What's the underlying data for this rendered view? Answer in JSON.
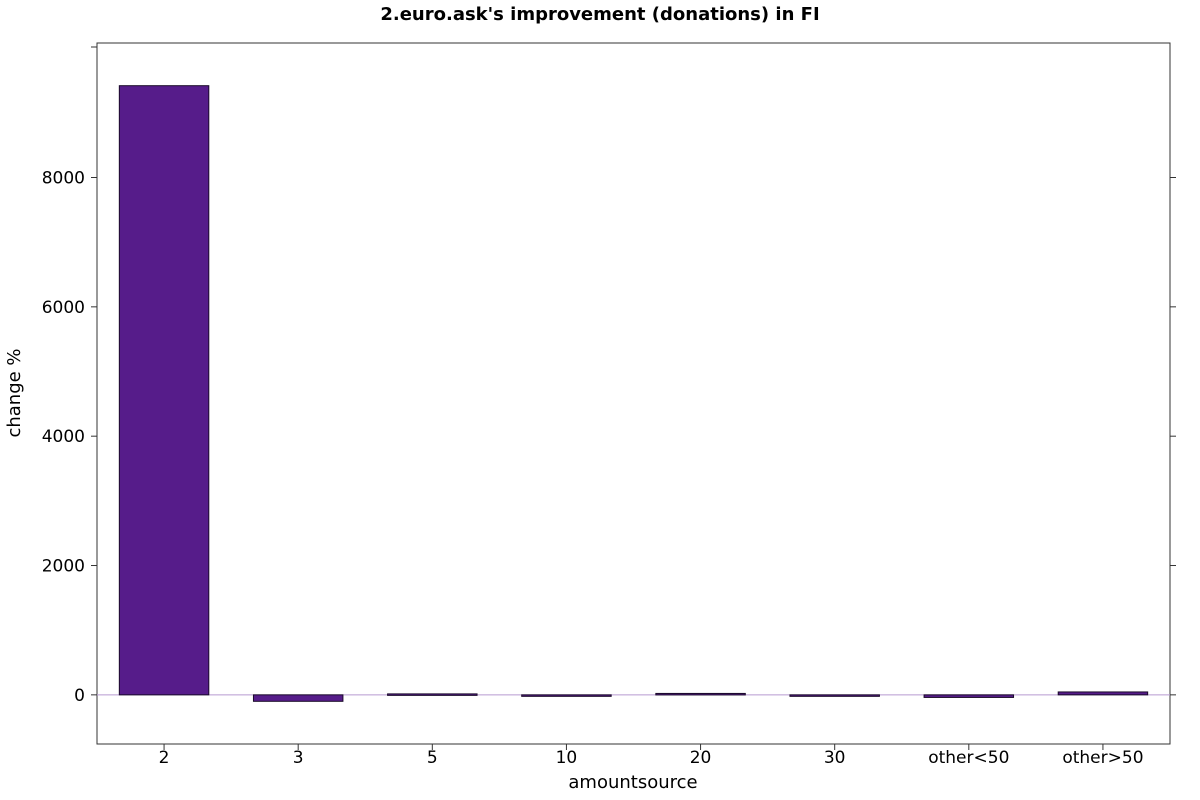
{
  "chart_data": {
    "type": "bar",
    "title": "2.euro.ask's improvement (donations) in FI",
    "xlabel": "amountsource",
    "ylabel": "change %",
    "categories": [
      "2",
      "3",
      "5",
      "10",
      "20",
      "30",
      "other<50",
      "other>50"
    ],
    "values": [
      9420,
      -100,
      15,
      -5,
      22,
      -5,
      -40,
      45
    ],
    "ylim": [
      -760,
      10080
    ],
    "yticks": [
      "0",
      "2000",
      "4000",
      "6000",
      "8000"
    ],
    "ytick_values": [
      0,
      2000,
      4000,
      6000,
      8000
    ],
    "bar_color": "#561c8a",
    "zero_line_color": "#b89ad0",
    "grid": false
  }
}
